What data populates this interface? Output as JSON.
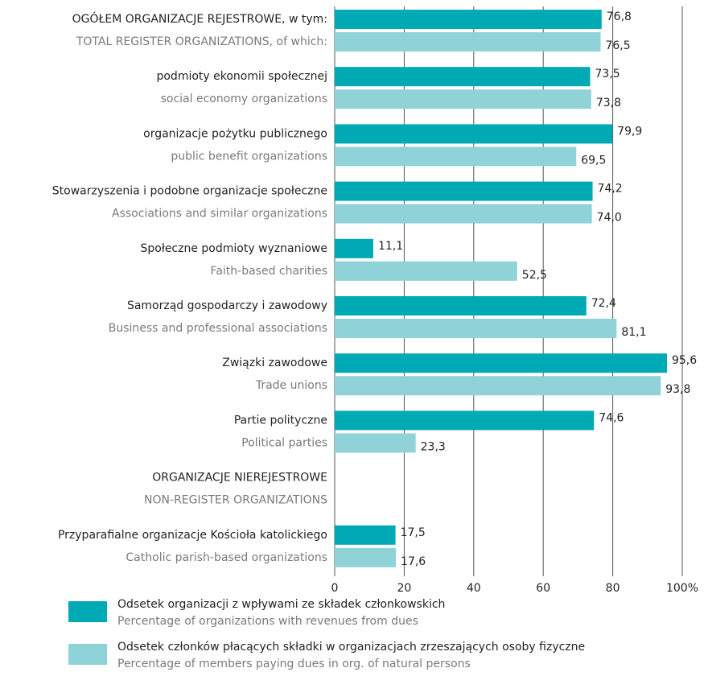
{
  "chart_data": {
    "type": "bar",
    "orientation": "horizontal",
    "categories": [
      "OGÓŁEM ORGANIZACJE REJESTROWE, w tym:",
      "podmioty ekonomii społecznej",
      "organizacje pożytku publicznego",
      "Stowarzyszenia i podobne organizacje społeczne",
      "Społeczne podmioty wyznaniowe",
      "Samorząd gospodarczy i zawodowy",
      "Związki zawodowe",
      "Partie polityczne",
      "ORGANIZACJE NIEREJESTROWE",
      "Przyparafialne organizacje Kościoła katolickiego"
    ],
    "categories_en": [
      "TOTAL REGISTER ORGANIZATIONS, of which:",
      "social economy organizations",
      "public benefit organizations",
      "Associations and similar organizations",
      "Faith-based charities",
      "Business and professional associations",
      "Trade unions",
      "Political parties",
      "NON-REGISTER ORGANIZATIONS",
      "Catholic parish-based organizations"
    ],
    "series": [
      {
        "name": "Odsetek organizacji z wpływami ze składek członkowskich",
        "name_en": "Percentage of organizations with revenues from dues",
        "color": "#00aab4",
        "values": [
          76.8,
          73.5,
          79.9,
          74.2,
          11.1,
          72.4,
          95.6,
          74.6,
          null,
          17.5
        ],
        "value_labels": [
          "76,8",
          "73,5",
          "79,9",
          "74,2",
          "11,1",
          "72,4",
          "95,6",
          "74,6",
          null,
          "17,5"
        ]
      },
      {
        "name": "Odsetek członków płacących składki w organizacjach zrzeszających osoby fizyczne",
        "name_en": "Percentage of members paying dues in org. of natural persons",
        "color": "#8fd3d8",
        "values": [
          76.5,
          73.8,
          69.5,
          74.0,
          52.5,
          81.1,
          93.8,
          23.3,
          null,
          17.6
        ],
        "value_labels": [
          "76,5",
          "73,8",
          "69,5",
          "74,0",
          "52,5",
          "81,1",
          "93,8",
          "23,3",
          null,
          "17,6"
        ]
      }
    ],
    "xlim": [
      0,
      100
    ],
    "xticks": [
      0,
      20,
      40,
      60,
      80,
      {
        "value": 100,
        "label": "100%"
      }
    ],
    "grid": true
  }
}
